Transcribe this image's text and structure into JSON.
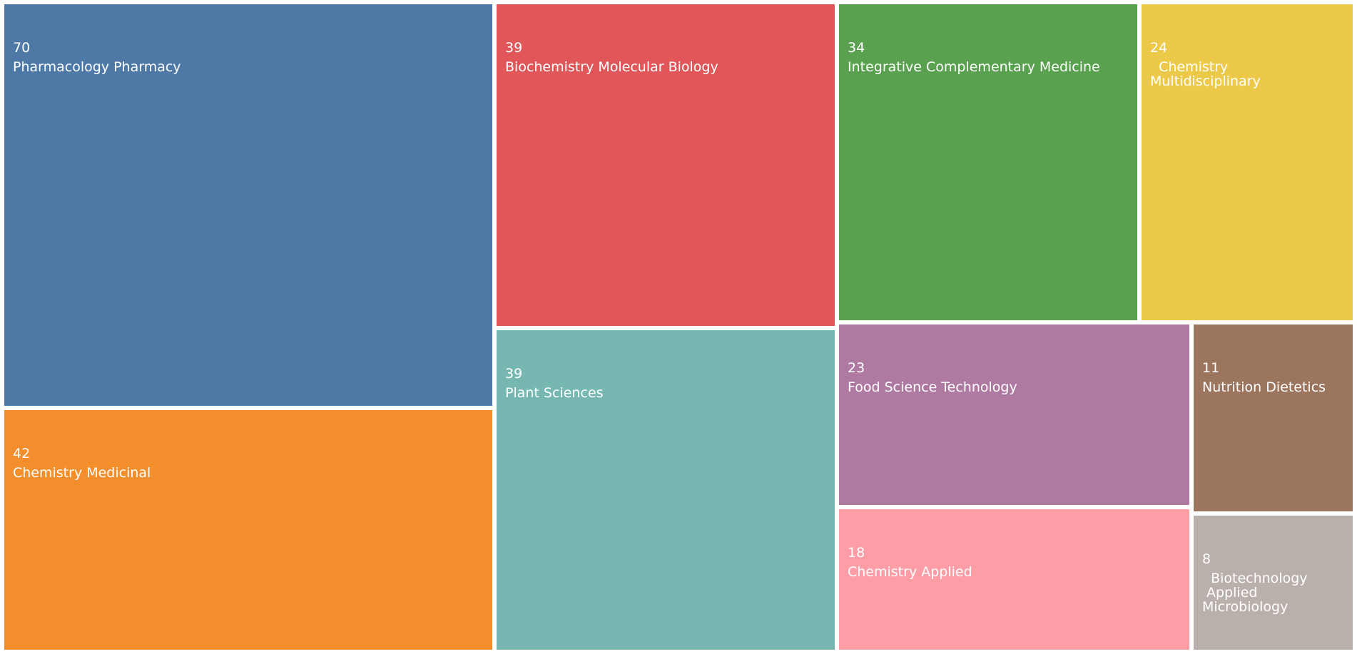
{
  "chart_data": {
    "type": "treemap",
    "items": [
      {
        "name": "Pharmacology Pharmacy",
        "label": "Pharmacology Pharmacy",
        "value": 70,
        "color": "#4e79a7"
      },
      {
        "name": "Chemistry Medicinal",
        "label": "Chemistry Medicinal",
        "value": 42,
        "color": "#f28e2c"
      },
      {
        "name": "Biochemistry Molecular Biology",
        "label": "Biochemistry Molecular Biology",
        "value": 39,
        "color": "#e15759"
      },
      {
        "name": "Plant Sciences",
        "label": "Plant Sciences",
        "value": 39,
        "color": "#76b7b2"
      },
      {
        "name": "Integrative Complementary Medicine",
        "label": "Integrative Complementary Medicine",
        "value": 34,
        "color": "#59a14f"
      },
      {
        "name": "Chemistry Multidisciplinary",
        "label": "  Chemistry\nMultidisciplinary",
        "value": 24,
        "color": "#edc949"
      },
      {
        "name": "Food Science Technology",
        "label": "Food Science Technology",
        "value": 23,
        "color": "#af7aa1"
      },
      {
        "name": "Nutrition Dietetics",
        "label": "Nutrition Dietetics",
        "value": 11,
        "color": "#9c755f"
      },
      {
        "name": "Chemistry Applied",
        "label": "Chemistry Applied",
        "value": 18,
        "color": "#ff9da7"
      },
      {
        "name": "Biotechnology Applied Microbiology",
        "label": "  Biotechnology\n Applied\nMicrobiology",
        "value": 8,
        "color": "#bab0ab"
      }
    ]
  }
}
